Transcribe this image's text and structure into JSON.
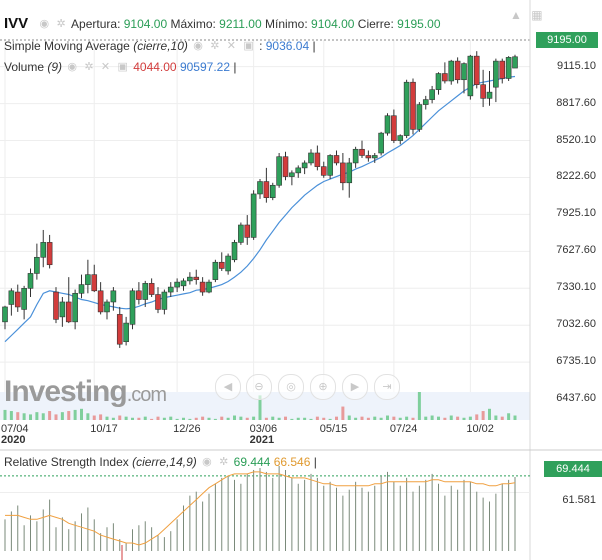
{
  "header": {
    "symbol": "IVV",
    "open_label": "Apertura:",
    "open_value": "9104.00",
    "high_label": "Máximo:",
    "high_value": "9211.00",
    "low_label": "Mínimo:",
    "low_value": "9104.00",
    "close_label": "Cierre:",
    "close_value": "9195.00"
  },
  "sma": {
    "label": "Simple Moving Average",
    "params": "(cierre,10)",
    "value": "9036.04"
  },
  "volume": {
    "label": "Volume",
    "params": "(9)",
    "value1": "4044.00",
    "value2": "90597.22"
  },
  "rsi": {
    "label": "Relative Strength Index",
    "params": "(cierre,14,9)",
    "value1": "69.444",
    "value2": "66.546",
    "axis_label": "61.581",
    "box": "69.444"
  },
  "price_box": "9195.00",
  "logo": {
    "text": "Investing",
    "suffix": ".com"
  },
  "icons": [
    "eye-icon",
    "gear-icon",
    "close-icon",
    "lock-icon",
    "bell-icon",
    "camera-icon",
    "crosshair-icon"
  ],
  "colors": {
    "up": "#2fa05b",
    "down": "#d23c3c",
    "sma": "#4a90d9",
    "rsi_signal": "#f0a040",
    "grid": "#eeeeee"
  },
  "chart_data": {
    "type": "candlestick",
    "title": "IVV",
    "y_ticks": [
      "9115.10",
      "8817.60",
      "8520.10",
      "8222.60",
      "7925.10",
      "7627.60",
      "7330.10",
      "7032.60",
      "6735.10",
      "6437.60"
    ],
    "x_ticks": [
      {
        "label": "07/04",
        "sub": "2020"
      },
      {
        "label": "10/17",
        "sub": ""
      },
      {
        "label": "12/26",
        "sub": ""
      },
      {
        "label": "03/06",
        "sub": "2021"
      },
      {
        "label": "05/15",
        "sub": ""
      },
      {
        "label": "07/24",
        "sub": ""
      },
      {
        "label": "10/02",
        "sub": ""
      }
    ],
    "ylim": [
      6350,
      9330
    ],
    "candles": [
      [
        7060,
        7190,
        7000,
        7180
      ],
      [
        7200,
        7330,
        7110,
        7310
      ],
      [
        7300,
        7360,
        7140,
        7180
      ],
      [
        7160,
        7350,
        7080,
        7330
      ],
      [
        7330,
        7490,
        7260,
        7450
      ],
      [
        7450,
        7690,
        7400,
        7580
      ],
      [
        7580,
        7800,
        7500,
        7700
      ],
      [
        7700,
        7760,
        7490,
        7520
      ],
      [
        7300,
        7340,
        7050,
        7080
      ],
      [
        7100,
        7260,
        7020,
        7220
      ],
      [
        7220,
        7420,
        7050,
        7060
      ],
      [
        7060,
        7320,
        7000,
        7290
      ],
      [
        7290,
        7440,
        7250,
        7360
      ],
      [
        7360,
        7560,
        7290,
        7440
      ],
      [
        7440,
        7520,
        7300,
        7310
      ],
      [
        7310,
        7380,
        7120,
        7140
      ],
      [
        7140,
        7240,
        7080,
        7220
      ],
      [
        7220,
        7340,
        7150,
        7310
      ],
      [
        7120,
        7180,
        6850,
        6880
      ],
      [
        6900,
        7100,
        6870,
        7050
      ],
      [
        7040,
        7330,
        7000,
        7310
      ],
      [
        7310,
        7380,
        7200,
        7240
      ],
      [
        7240,
        7390,
        7180,
        7370
      ],
      [
        7370,
        7410,
        7260,
        7280
      ],
      [
        7280,
        7340,
        7130,
        7160
      ],
      [
        7160,
        7320,
        7120,
        7300
      ],
      [
        7300,
        7380,
        7260,
        7340
      ],
      [
        7340,
        7410,
        7300,
        7380
      ],
      [
        7350,
        7410,
        7310,
        7390
      ],
      [
        7390,
        7460,
        7360,
        7420
      ],
      [
        7420,
        7480,
        7360,
        7400
      ],
      [
        7380,
        7420,
        7270,
        7300
      ],
      [
        7300,
        7400,
        7290,
        7380
      ],
      [
        7400,
        7560,
        7380,
        7540
      ],
      [
        7540,
        7620,
        7470,
        7490
      ],
      [
        7470,
        7610,
        7440,
        7590
      ],
      [
        7560,
        7720,
        7540,
        7700
      ],
      [
        7700,
        7860,
        7680,
        7840
      ],
      [
        7840,
        7920,
        7680,
        7740
      ],
      [
        7740,
        8120,
        7720,
        8090
      ],
      [
        8090,
        8210,
        8050,
        8190
      ],
      [
        8190,
        8300,
        8020,
        8060
      ],
      [
        8060,
        8180,
        8040,
        8160
      ],
      [
        8160,
        8420,
        8140,
        8390
      ],
      [
        8390,
        8430,
        8200,
        8230
      ],
      [
        8230,
        8280,
        8160,
        8260
      ],
      [
        8260,
        8320,
        8220,
        8300
      ],
      [
        8300,
        8360,
        8250,
        8340
      ],
      [
        8340,
        8450,
        8320,
        8420
      ],
      [
        8420,
        8480,
        8280,
        8310
      ],
      [
        8310,
        8350,
        8220,
        8240
      ],
      [
        8240,
        8410,
        8210,
        8400
      ],
      [
        8400,
        8440,
        8320,
        8340
      ],
      [
        8340,
        8420,
        8120,
        8180
      ],
      [
        8180,
        8380,
        8060,
        8340
      ],
      [
        8340,
        8470,
        8300,
        8450
      ],
      [
        8450,
        8520,
        8380,
        8400
      ],
      [
        8400,
        8440,
        8350,
        8380
      ],
      [
        8380,
        8420,
        8340,
        8400
      ],
      [
        8420,
        8590,
        8400,
        8580
      ],
      [
        8580,
        8740,
        8560,
        8720
      ],
      [
        8720,
        8770,
        8500,
        8520
      ],
      [
        8520,
        8570,
        8490,
        8560
      ],
      [
        8560,
        9010,
        8540,
        8990
      ],
      [
        8990,
        9020,
        8570,
        8610
      ],
      [
        8610,
        8830,
        8590,
        8810
      ],
      [
        8810,
        8880,
        8770,
        8850
      ],
      [
        8850,
        8960,
        8820,
        8930
      ],
      [
        8930,
        9070,
        8890,
        9060
      ],
      [
        9060,
        9150,
        8980,
        9000
      ],
      [
        9000,
        9170,
        8970,
        9160
      ],
      [
        9160,
        9190,
        8980,
        9010
      ],
      [
        9010,
        9150,
        8900,
        9140
      ],
      [
        8880,
        9210,
        8850,
        9200
      ],
      [
        9200,
        9240,
        8940,
        8970
      ],
      [
        8970,
        9090,
        8790,
        8860
      ],
      [
        8860,
        9080,
        8800,
        8910
      ],
      [
        8950,
        9180,
        8830,
        9160
      ],
      [
        9160,
        9180,
        8980,
        9020
      ],
      [
        9020,
        9200,
        9000,
        9190
      ],
      [
        9104,
        9211,
        9104,
        9195
      ]
    ],
    "sma_values": [
      6900,
      6950,
      7000,
      7050,
      7100,
      7200,
      7290,
      7310,
      7300,
      7290,
      7280,
      7260,
      7240,
      7230,
      7215,
      7200,
      7190,
      7180,
      7170,
      7165,
      7170,
      7185,
      7205,
      7220,
      7240,
      7255,
      7265,
      7275,
      7285,
      7295,
      7315,
      7320,
      7330,
      7345,
      7360,
      7385,
      7420,
      7460,
      7510,
      7570,
      7640,
      7720,
      7790,
      7860,
      7920,
      7980,
      8030,
      8080,
      8120,
      8160,
      8190,
      8210,
      8230,
      8250,
      8265,
      8290,
      8310,
      8335,
      8360,
      8385,
      8420,
      8450,
      8480,
      8520,
      8560,
      8610,
      8660,
      8710,
      8760,
      8800,
      8840,
      8880,
      8920,
      8950,
      8980,
      8990,
      9000,
      9010,
      9020,
      9030,
      9036.04
    ],
    "volume": [
      9,
      8,
      7,
      6,
      5,
      7,
      6,
      8,
      5,
      7,
      8,
      9,
      10,
      6,
      4,
      5,
      3,
      2,
      4,
      3,
      2,
      2,
      3,
      1,
      3,
      2,
      3,
      1,
      2,
      1,
      2,
      3,
      2,
      1,
      3,
      2,
      4,
      3,
      2,
      3,
      22,
      2,
      3,
      2,
      3,
      1,
      2,
      2,
      1,
      3,
      2,
      1,
      3,
      12,
      4,
      2,
      3,
      2,
      3,
      2,
      4,
      3,
      2,
      3,
      2,
      25,
      3,
      4,
      3,
      2,
      4,
      3,
      2,
      3,
      5,
      8,
      10,
      4,
      3,
      6,
      4
    ],
    "rsi": [
      48,
      52,
      55,
      45,
      50,
      47,
      53,
      58,
      44,
      49,
      43,
      47,
      51,
      54,
      48,
      41,
      44,
      46,
      38,
      36,
      43,
      45,
      47,
      44,
      40,
      39,
      42,
      48,
      55,
      60,
      62,
      57,
      61,
      66,
      69,
      70,
      68,
      66,
      71,
      73,
      74,
      72,
      69,
      75,
      73,
      69,
      66,
      68,
      71,
      69,
      65,
      67,
      64,
      60,
      63,
      67,
      64,
      62,
      65,
      70,
      72,
      67,
      65,
      69,
      62,
      65,
      68,
      71,
      66,
      60,
      65,
      63,
      68,
      67,
      62,
      59,
      57,
      61,
      66,
      68,
      69.444
    ],
    "rsi_signal": [
      50,
      50,
      50,
      49,
      48,
      48,
      49,
      50,
      49,
      48,
      46,
      45,
      44,
      43,
      42,
      40,
      39,
      38,
      37,
      36,
      36,
      35,
      36,
      38,
      40,
      43,
      46,
      49,
      52,
      55,
      58,
      61,
      64,
      66,
      68,
      70,
      71,
      71,
      71,
      72,
      72,
      71,
      71,
      71,
      70,
      69,
      69,
      69,
      68,
      67,
      66,
      66,
      65,
      65,
      65,
      65,
      65,
      65,
      66,
      66,
      67,
      67,
      67,
      67,
      67,
      67,
      67,
      68,
      68,
      67,
      67,
      67,
      67,
      67,
      66,
      66,
      65,
      65,
      66,
      66,
      66.546
    ],
    "rsi_levels": [
      70,
      30
    ]
  }
}
